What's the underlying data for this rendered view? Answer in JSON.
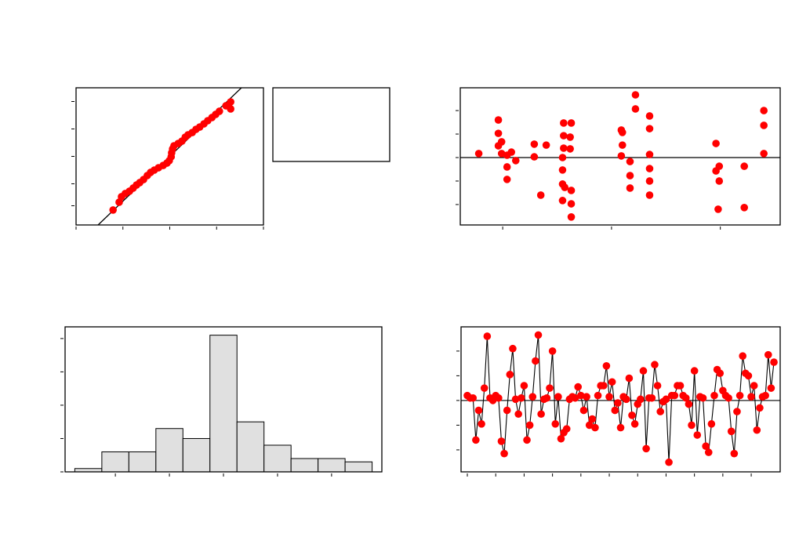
{
  "chart_data": [
    {
      "type": "scatter",
      "color": "#ff0000",
      "x": [
        0.79,
        0.92,
        0.97,
        1.05,
        1.14,
        1.22,
        1.29,
        1.36,
        1.44,
        1.52,
        1.59,
        1.67,
        1.76,
        1.86,
        1.94,
        1.99,
        2.03,
        2.04,
        2.06,
        2.09,
        2.18,
        2.26,
        2.33,
        2.39,
        2.48,
        2.56,
        2.64,
        2.73,
        2.81,
        2.9,
        2.98,
        3.06,
        3.2,
        3.3,
        3.3
      ],
      "values": [
        10.9,
        16.6,
        20.6,
        22.9,
        24.6,
        26.9,
        29.1,
        30.9,
        33.1,
        36,
        38.3,
        40,
        41.7,
        43.4,
        45.1,
        46.9,
        49.7,
        52.6,
        55.4,
        57.7,
        59.4,
        61.1,
        64,
        65.7,
        67.4,
        69.7,
        71.4,
        73.7,
        76,
        78.3,
        80.6,
        82.9,
        86.9,
        89.7,
        84.6
      ],
      "fit_line": {
        "x": [
          0.47,
          3.53
        ],
        "y": [
          0,
          100
        ]
      },
      "xlim": [
        0,
        4
      ],
      "xticks": [
        0,
        1,
        2,
        3,
        4
      ],
      "ylim": [
        0,
        100
      ],
      "yticks": [
        14,
        30,
        50,
        70,
        90
      ]
    },
    {
      "type": "scatter",
      "color": "#ff0000",
      "x": [
        0.78,
        0.96,
        0.96,
        0.99,
        0.96,
        0.99,
        1.04,
        1.08,
        1.12,
        1.04,
        1.04,
        1.29,
        1.29,
        1.4,
        1.35,
        1.56,
        1.63,
        1.56,
        1.62,
        1.56,
        1.62,
        1.55,
        1.55,
        1.55,
        1.57,
        1.63,
        1.55,
        1.63,
        1.63,
        2.09,
        2.1,
        2.1,
        2.09,
        2.17,
        2.17,
        2.17,
        2.22,
        2.22,
        2.35,
        2.35,
        2.35,
        2.35,
        2.35,
        2.35,
        2.96,
        2.99,
        2.96,
        2.99,
        2.98,
        3.22,
        3.22,
        3.4,
        3.4,
        3.4
      ],
      "values": [
        0.17,
        1.6,
        1.03,
        0.67,
        0.5,
        0.17,
        0.1,
        0.23,
        -0.13,
        -0.4,
        -0.93,
        0.57,
        0.03,
        0.53,
        -1.6,
        1.47,
        1.47,
        0.93,
        0.87,
        0.4,
        0.37,
        0,
        -0.53,
        -1.13,
        -1.27,
        -1.4,
        -1.83,
        -1.97,
        -2.53,
        1.17,
        1.07,
        0.53,
        0.07,
        -0.17,
        -0.77,
        -1.3,
        2.67,
        2.07,
        1.77,
        1.23,
        0.13,
        -0.47,
        -1,
        -1.6,
        0.6,
        -0.37,
        -0.57,
        -1,
        -2.2,
        -0.37,
        -2.13,
        2,
        1.37,
        0.17
      ],
      "reference_line": 0,
      "xlim": [
        0.61,
        3.55
      ],
      "xticks": [
        1,
        2,
        3
      ],
      "ylim": [
        -2.87,
        2.97
      ],
      "yticks": [
        -2,
        -1,
        0,
        1,
        2
      ]
    },
    {
      "type": "histogram",
      "color": "#e0e0e0",
      "bins": [
        -2.75,
        -2.25,
        -1.75,
        -1.25,
        -0.75,
        -0.25,
        0.25,
        0.75,
        1.25,
        1.75,
        2.25,
        2.75
      ],
      "values": [
        1,
        6,
        6,
        13,
        10,
        41,
        15,
        8,
        4,
        4,
        3
      ],
      "xlim": [
        -2.93,
        2.93
      ],
      "xticks": [
        -2,
        -1,
        0,
        1,
        2
      ],
      "ylim": [
        0,
        43.5
      ],
      "yticks": [
        0,
        10,
        20,
        30,
        40
      ]
    },
    {
      "type": "line",
      "color": "#ff0000",
      "x": [
        1,
        2,
        3,
        4,
        5,
        6,
        7,
        8,
        9,
        10,
        11,
        12,
        13,
        14,
        15,
        16,
        17,
        18,
        19,
        20,
        21,
        22,
        23,
        24,
        25,
        26,
        27,
        28,
        29,
        30,
        31,
        32,
        33,
        34,
        35,
        36,
        37,
        38,
        39,
        40,
        41,
        42,
        43,
        44,
        45,
        46,
        47,
        48,
        49,
        50,
        51,
        52,
        53,
        54,
        55,
        56,
        57,
        58,
        59,
        60,
        61,
        62,
        63,
        64,
        65,
        66,
        67,
        68,
        69,
        70,
        71,
        72,
        73,
        74,
        75,
        76,
        77,
        78,
        79,
        80,
        81,
        82,
        83,
        84,
        85,
        86,
        87,
        88,
        89,
        90,
        91,
        92,
        93,
        94,
        95,
        96,
        97,
        98,
        99,
        100,
        101,
        102,
        103,
        104,
        105,
        106,
        107,
        108,
        109
      ],
      "values": [
        0.2,
        0.1,
        0.1,
        -1.6,
        -0.4,
        -0.95,
        0.5,
        2.6,
        0.1,
        0,
        0.2,
        0.1,
        -1.65,
        -2.15,
        -0.4,
        1.05,
        2.1,
        0.05,
        -0.55,
        0.1,
        0.6,
        -1.6,
        -1,
        0.15,
        1.6,
        2.65,
        -0.55,
        0.05,
        0.1,
        0.5,
        2,
        -0.95,
        0.15,
        -1.55,
        -1.3,
        -1.15,
        0.05,
        0.15,
        0.1,
        0.55,
        0.2,
        -0.4,
        0.15,
        -1,
        -0.75,
        -1.1,
        0.2,
        0.6,
        0.6,
        1.4,
        0.15,
        0.75,
        -0.4,
        -0.1,
        -1.1,
        0.15,
        0.05,
        0.9,
        -0.6,
        -0.95,
        -0.15,
        0.05,
        1.2,
        -1.95,
        0.1,
        0.1,
        1.45,
        0.6,
        -0.45,
        -0.05,
        0.05,
        -2.5,
        0.2,
        0.2,
        0.6,
        0.6,
        0.2,
        0.1,
        -0.15,
        -1,
        1.2,
        -1.4,
        0.15,
        0.1,
        -1.85,
        -2.1,
        -0.95,
        0.2,
        1.25,
        1.1,
        0.4,
        0.2,
        0.1,
        -1.25,
        -2.15,
        -0.45,
        0.2,
        1.8,
        1.1,
        1,
        0.15,
        0.6,
        -1.2,
        -0.3,
        0.15,
        0.2,
        1.85,
        0.5,
        1.55
      ],
      "reference_line": 0,
      "xlim": [
        -1.21,
        111.2
      ],
      "xticks": [
        1,
        11,
        21,
        31,
        41,
        51,
        61,
        71,
        81,
        91,
        101
      ],
      "ylim": [
        -2.89,
        2.98
      ],
      "yticks": [
        -2,
        -1,
        0,
        1,
        2
      ]
    }
  ]
}
